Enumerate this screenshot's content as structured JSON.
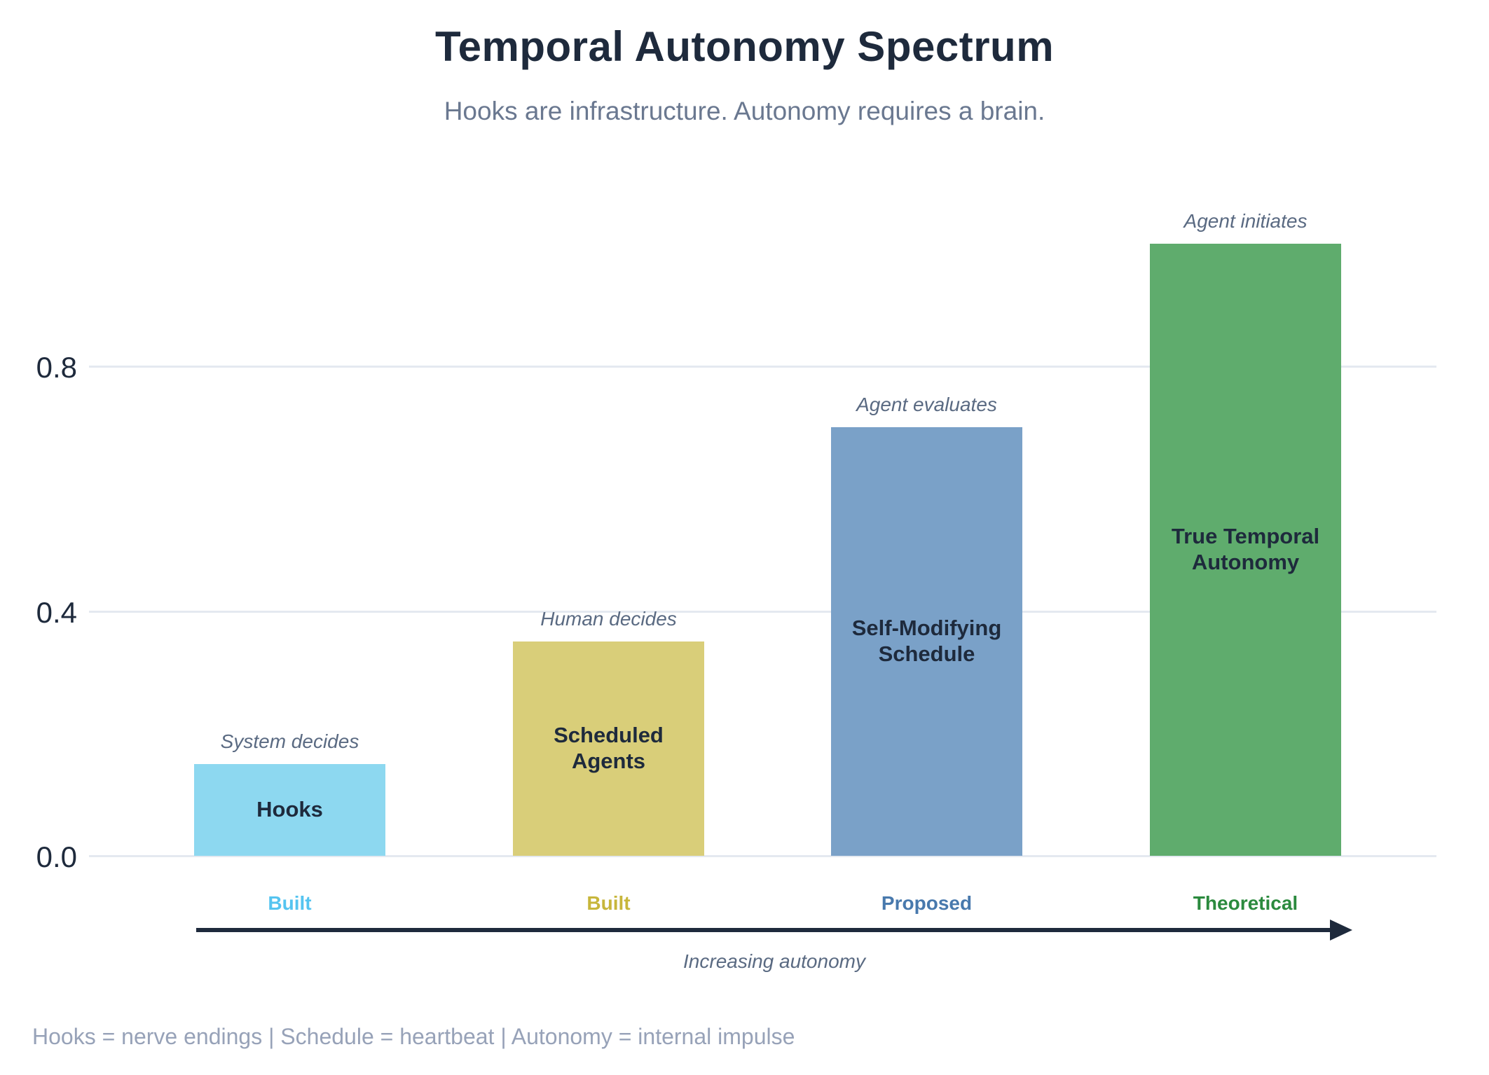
{
  "title": "Temporal Autonomy Spectrum",
  "subtitle": "Hooks are infrastructure. Autonomy requires a brain.",
  "footer": "Hooks = nerve endings | Schedule = heartbeat | Autonomy = internal impulse",
  "colors": {
    "title_text": "#1E2A3C",
    "subtitle_text": "#6A7890",
    "annotation_text": "#5A6A82",
    "footer_text": "#97A2B8",
    "gridline": "#E4E9F0",
    "arrow": "#1E2A3C",
    "bar_label_text": "#1E2A3C"
  },
  "chart_data": {
    "type": "bar",
    "title": "Temporal Autonomy Spectrum",
    "subtitle": "Hooks are infrastructure. Autonomy requires a brain.",
    "categories": [
      "Hooks",
      "Scheduled Agents",
      "Self-Modifying Schedule",
      "True Temporal Autonomy"
    ],
    "values": [
      0.15,
      0.35,
      0.7,
      1.0
    ],
    "bars": [
      {
        "label": "Hooks",
        "display_label": "Hooks",
        "value": 0.15,
        "color": "#8DD8F0",
        "annotation": "System decides",
        "status": "Built",
        "status_color": "#55C4F0"
      },
      {
        "label": "Scheduled Agents",
        "display_label": "Scheduled\nAgents",
        "value": 0.35,
        "color": "#D9CE79",
        "annotation": "Human decides",
        "status": "Built",
        "status_color": "#C7B63B"
      },
      {
        "label": "Self-Modifying Schedule",
        "display_label": "Self-Modifying\nSchedule",
        "value": 0.7,
        "color": "#7AA1C8",
        "annotation": "Agent evaluates",
        "status": "Proposed",
        "status_color": "#4879AD"
      },
      {
        "label": "True Temporal Autonomy",
        "display_label": "True Temporal\nAutonomy",
        "value": 1.0,
        "color": "#5FAC6D",
        "annotation": "Agent initiates",
        "status": "Theoretical",
        "status_color": "#2B8A3E"
      }
    ],
    "yticks": [
      {
        "label": "0.0",
        "value": 0.0
      },
      {
        "label": "0.4",
        "value": 0.4
      },
      {
        "label": "0.8",
        "value": 0.8
      }
    ],
    "ylim": [
      0,
      1.05
    ],
    "grid": true,
    "legend": false,
    "xlabel": "Increasing autonomy",
    "ylabel": ""
  }
}
